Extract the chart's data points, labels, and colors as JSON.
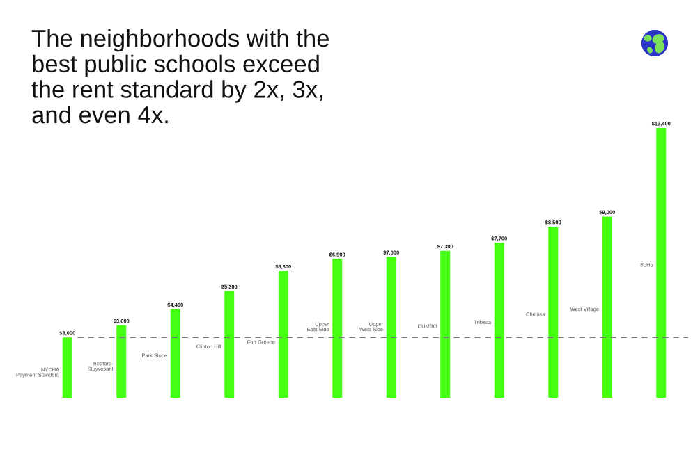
{
  "chart_data": {
    "type": "bar",
    "title": "The neighborhoods with the\nbest public schools exceed\nthe rent standard by 2x, 3x,\nand even 4x.",
    "categories": [
      "NYCHA\nPayment Standard",
      "Bedford-\nStuyvesant",
      "Park Slope",
      "Clinton Hill",
      "Fort Greene",
      "Upper\nEast Side",
      "Upper\nWest Side",
      "DUMBO",
      "Tribeca",
      "Chelsea",
      "West Village",
      "SoHo"
    ],
    "values": [
      3000,
      3600,
      4400,
      5300,
      6300,
      6900,
      7000,
      7300,
      7700,
      8500,
      9000,
      13400
    ],
    "value_labels": [
      "$3,000",
      "$3,600",
      "$4,400",
      "$5,300",
      "$6,300",
      "$6,900",
      "$7,000",
      "$7,300",
      "$7,700",
      "$8,500",
      "$9,000",
      "$13,400"
    ],
    "color": "#44ff11",
    "ref_lines": [
      {
        "axis": "y",
        "value": 3000,
        "color": "#777777",
        "line_style": "dashed"
      }
    ],
    "tick_labels": false
  }
}
